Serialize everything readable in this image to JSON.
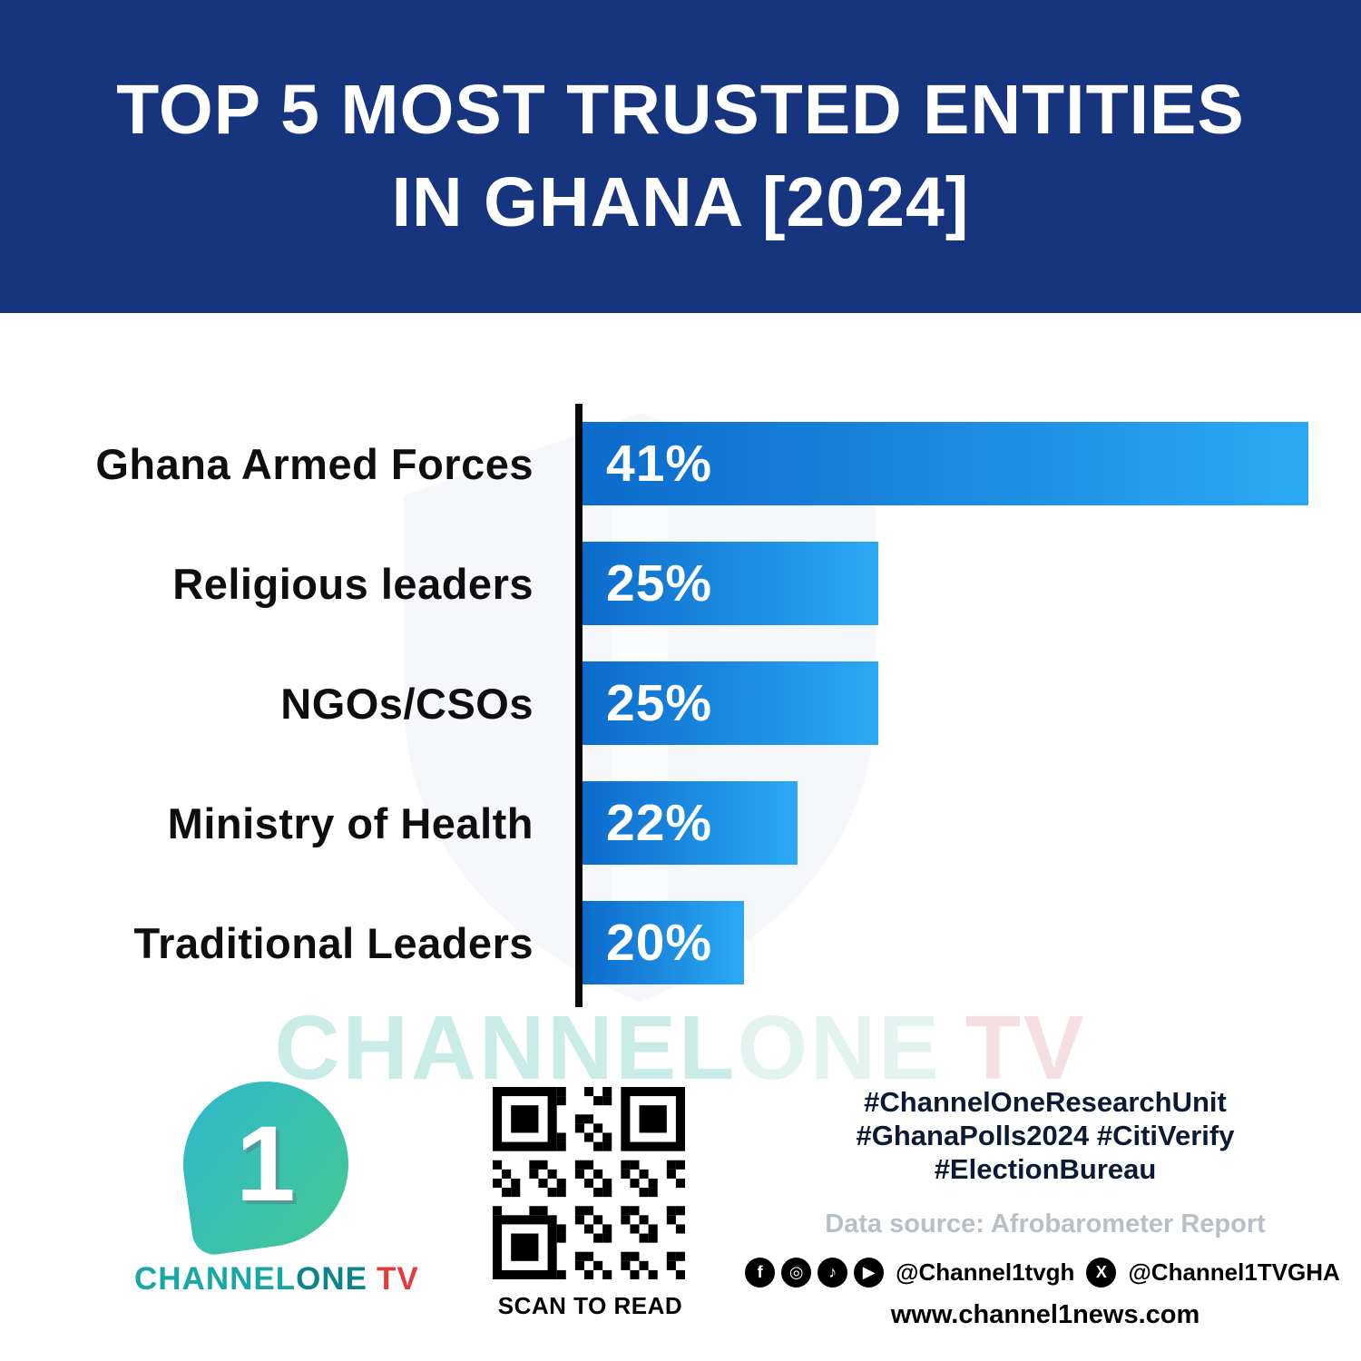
{
  "header": {
    "title_line1": "TOP 5 MOST TRUSTED ENTITIES",
    "title_line2": "IN GHANA [2024]"
  },
  "chart_data": {
    "type": "bar",
    "orientation": "horizontal",
    "title": "Top 5 Most Trusted Entities in Ghana [2024]",
    "categories": [
      "Ghana Armed Forces",
      "Religious leaders",
      "NGOs/CSOs",
      "Ministry of Health",
      "Traditional Leaders"
    ],
    "values": [
      41,
      25,
      25,
      22,
      20
    ],
    "value_suffix": "%",
    "xlim": [
      14,
      42
    ],
    "grid": false,
    "legend": false,
    "bar_gradient": [
      "#0c6bcc",
      "#2ba9f4"
    ],
    "rows": [
      {
        "label": "Ghana Armed Forces",
        "value": 41,
        "value_label": "41%"
      },
      {
        "label": "Religious leaders",
        "value": 25,
        "value_label": "25%"
      },
      {
        "label": "NGOs/CSOs",
        "value": 25,
        "value_label": "25%"
      },
      {
        "label": "Ministry of Health",
        "value": 22,
        "value_label": "22%"
      },
      {
        "label": "Traditional Leaders",
        "value": 20,
        "value_label": "20%"
      }
    ]
  },
  "watermark": {
    "part1": "CHANNEL",
    "part2": "ONE",
    "part3": "TV"
  },
  "footer": {
    "logo": {
      "numeral": "1",
      "text_channel": "CHANNEL",
      "text_one": "ONE",
      "text_tv": "TV"
    },
    "qr_caption": "SCAN TO READ",
    "hashtags": [
      "#ChannelOneResearchUnit",
      "#GhanaPolls2024 #CitiVerify",
      "#ElectionBureau"
    ],
    "data_source": "Data source: Afrobarometer Report",
    "social": {
      "handle1": "@Channel1tvgh",
      "handle2": "@Channel1TVGHA",
      "glyphs": {
        "facebook": "f",
        "instagram": "◎",
        "tiktok": "♪",
        "youtube": "▶",
        "x": "X"
      }
    },
    "website": "www.channel1news.com"
  },
  "colors": {
    "banner_blue": "#16357e",
    "bar_start": "#0c6bcc",
    "bar_end": "#2ba9f4",
    "accent_teal": "#17a7a5",
    "accent_red": "#e23c3c",
    "hashtag_navy": "#0c1a33",
    "muted_gray": "#b8bfc7"
  }
}
